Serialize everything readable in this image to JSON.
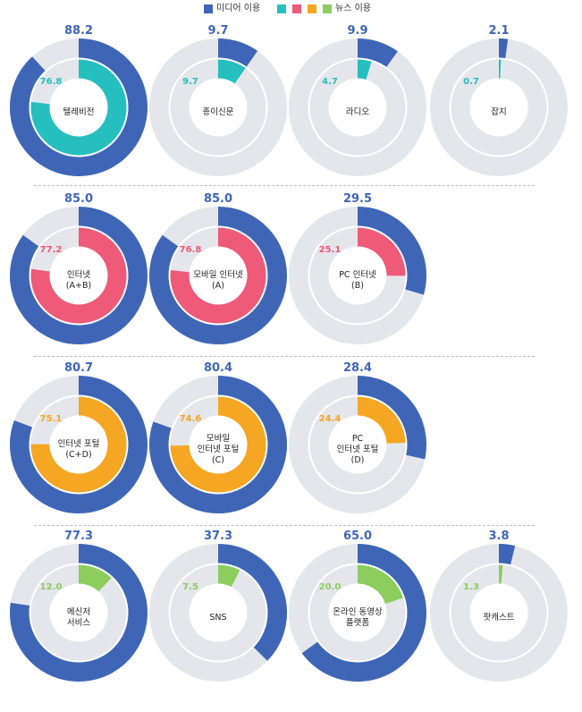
{
  "legend": {
    "media_label": "미디어 이용",
    "news_label": "뉴스 이용",
    "media_color": "#3f66b6",
    "news_colors": [
      "#26bfbf",
      "#ee5a78",
      "#f5a623",
      "#8ccd5e"
    ]
  },
  "colors": {
    "media": "#3f66b6",
    "track": "#e4e6eb"
  },
  "chart_data": {
    "type": "pie",
    "unit": "%",
    "groups": [
      {
        "news_color": "#26bfbf",
        "items": [
          {
            "label": [
              "텔레비전"
            ],
            "media": 88.2,
            "news": 76.8,
            "media_label": "88.2",
            "news_label": "76.8"
          },
          {
            "label": [
              "종이신문"
            ],
            "media": 9.7,
            "news": 9.7,
            "media_label": "9.7",
            "news_label": "9.7"
          },
          {
            "label": [
              "라디오"
            ],
            "media": 9.9,
            "news": 4.7,
            "media_label": "9.9",
            "news_label": "4.7"
          },
          {
            "label": [
              "잡지"
            ],
            "media": 2.1,
            "news": 0.7,
            "media_label": "2.1",
            "news_label": "0.7"
          }
        ]
      },
      {
        "news_color": "#ee5a78",
        "items": [
          {
            "label": [
              "인터넷",
              "(A+B)"
            ],
            "media": 85.0,
            "news": 77.2,
            "media_label": "85.0",
            "news_label": "77.2"
          },
          {
            "label": [
              "모바일 인터넷",
              "(A)"
            ],
            "media": 85.0,
            "news": 76.8,
            "media_label": "85.0",
            "news_label": "76.8"
          },
          {
            "label": [
              "PC 인터넷",
              "(B)"
            ],
            "media": 29.5,
            "news": 25.1,
            "media_label": "29.5",
            "news_label": "25.1"
          }
        ]
      },
      {
        "news_color": "#f5a623",
        "items": [
          {
            "label": [
              "인터넷 포털",
              "(C+D)"
            ],
            "media": 80.7,
            "news": 75.1,
            "media_label": "80.7",
            "news_label": "75.1"
          },
          {
            "label": [
              "모바일",
              "인터넷 포털",
              "(C)"
            ],
            "media": 80.4,
            "news": 74.6,
            "media_label": "80.4",
            "news_label": "74.6"
          },
          {
            "label": [
              "PC",
              "인터넷 포털",
              "(D)"
            ],
            "media": 28.4,
            "news": 24.4,
            "media_label": "28.4",
            "news_label": "24.4"
          }
        ]
      },
      {
        "news_color": "#8ccd5e",
        "items": [
          {
            "label": [
              "메신저",
              "서비스"
            ],
            "media": 77.3,
            "news": 12.0,
            "media_label": "77.3",
            "news_label": "12.0"
          },
          {
            "label": [
              "SNS"
            ],
            "media": 37.3,
            "news": 7.5,
            "media_label": "37.3",
            "news_label": "7.5"
          },
          {
            "label": [
              "온라인 동영상",
              "플랫폼"
            ],
            "media": 65.0,
            "news": 20.0,
            "media_label": "65.0",
            "news_label": "20.0"
          },
          {
            "label": [
              "팟캐스트"
            ],
            "media": 3.8,
            "news": 1.3,
            "media_label": "3.8",
            "news_label": "1.3"
          }
        ]
      }
    ]
  }
}
